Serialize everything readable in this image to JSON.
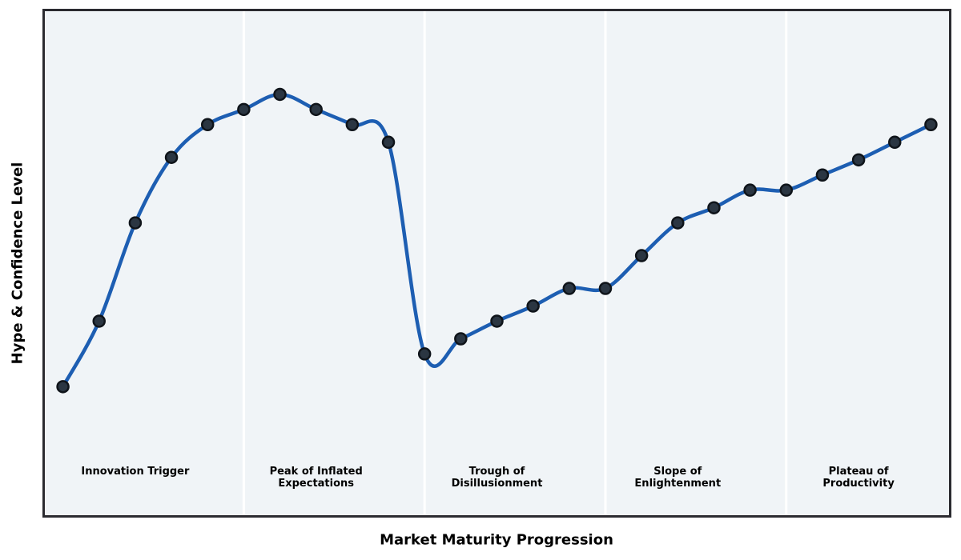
{
  "chart_data": {
    "type": "line",
    "title": "",
    "xlabel": "Market Maturity Progression",
    "ylabel": "Hype & Confidence Level",
    "x": [
      0,
      1,
      2,
      3,
      4,
      5,
      6,
      7,
      8,
      9,
      10,
      11,
      12,
      13,
      14,
      15,
      16,
      17,
      18,
      19,
      20,
      21,
      22,
      23,
      24
    ],
    "values": [
      25.5,
      38.5,
      58,
      71,
      77.5,
      80.5,
      83.5,
      80.5,
      77.5,
      74,
      32,
      35,
      38.5,
      41.5,
      45,
      45,
      51.5,
      58,
      61,
      64.5,
      64.5,
      67.5,
      70.5,
      74,
      77.5
    ],
    "xlim": [
      -0.5,
      24.5
    ],
    "ylim": [
      0,
      100
    ],
    "grid": false,
    "legend_position": "none",
    "marker": "circle",
    "smoothing": "spline",
    "phase_dividers_x": [
      5,
      10,
      15,
      20
    ],
    "phases": [
      {
        "label": "Innovation Trigger",
        "x": 2
      },
      {
        "label": "Peak of Inflated\nExpectations",
        "x": 7
      },
      {
        "label": "Trough of\nDisillusionment",
        "x": 12
      },
      {
        "label": "Slope of\nEnlightenment",
        "x": 17
      },
      {
        "label": "Plateau of\nProductivity",
        "x": 22
      }
    ],
    "colors": {
      "line": "#1d5eb2",
      "marker_fill": "#2b3642",
      "marker_edge": "#0f141a",
      "plot_background": "#f0f4f7",
      "phase_divider": "#ffffff",
      "frame_border": "#2b2b30",
      "text": "#000000",
      "page_background": "#ffffff"
    },
    "line_width": 4.5,
    "marker_radius": 7
  }
}
